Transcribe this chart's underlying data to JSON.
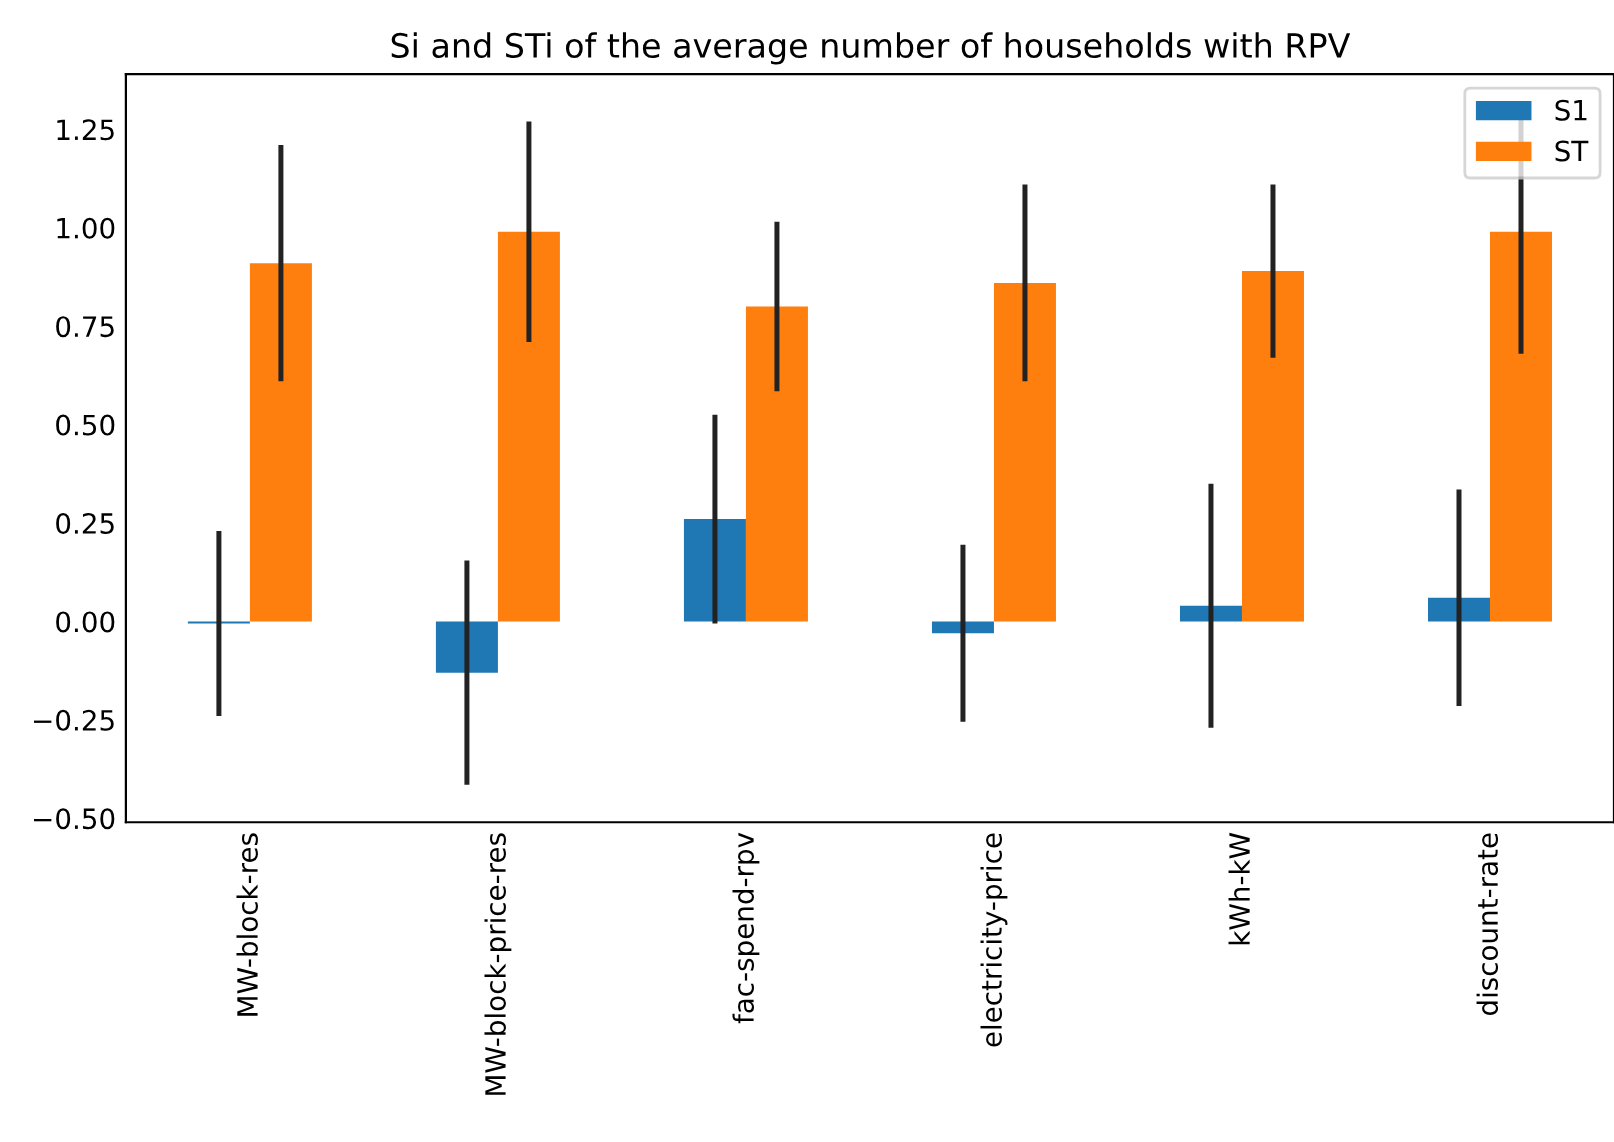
{
  "chart_data": {
    "type": "bar",
    "title": "Si and STi of the average number of households with RPV",
    "categories": [
      "MW-block-res",
      "MW-block-price-res",
      "fac-spend-rpv",
      "electricity-price",
      "kWh-kW",
      "discount-rate"
    ],
    "series": [
      {
        "name": "S1",
        "color": "#1f77b4",
        "values": [
          -0.005,
          -0.13,
          0.26,
          -0.03,
          0.04,
          0.06
        ],
        "errors": [
          0.235,
          0.285,
          0.265,
          0.225,
          0.31,
          0.275
        ]
      },
      {
        "name": "ST",
        "color": "#ff7f0e",
        "values": [
          0.91,
          0.99,
          0.8,
          0.86,
          0.89,
          0.99
        ],
        "errors": [
          0.3,
          0.28,
          0.215,
          0.25,
          0.22,
          0.31
        ]
      }
    ],
    "ylim": [
      -0.51,
      1.39
    ],
    "yticks": [
      {
        "value": -0.5,
        "label": "−0.50"
      },
      {
        "value": -0.25,
        "label": "−0.25"
      },
      {
        "value": 0,
        "label": "0.00"
      },
      {
        "value": 0.25,
        "label": "0.25"
      },
      {
        "value": 0.5,
        "label": "0.50"
      },
      {
        "value": 0.75,
        "label": "0.75"
      },
      {
        "value": 1.0,
        "label": "1.00"
      },
      {
        "value": 1.25,
        "label": "1.25"
      }
    ],
    "grid": false,
    "legend": "top right"
  }
}
